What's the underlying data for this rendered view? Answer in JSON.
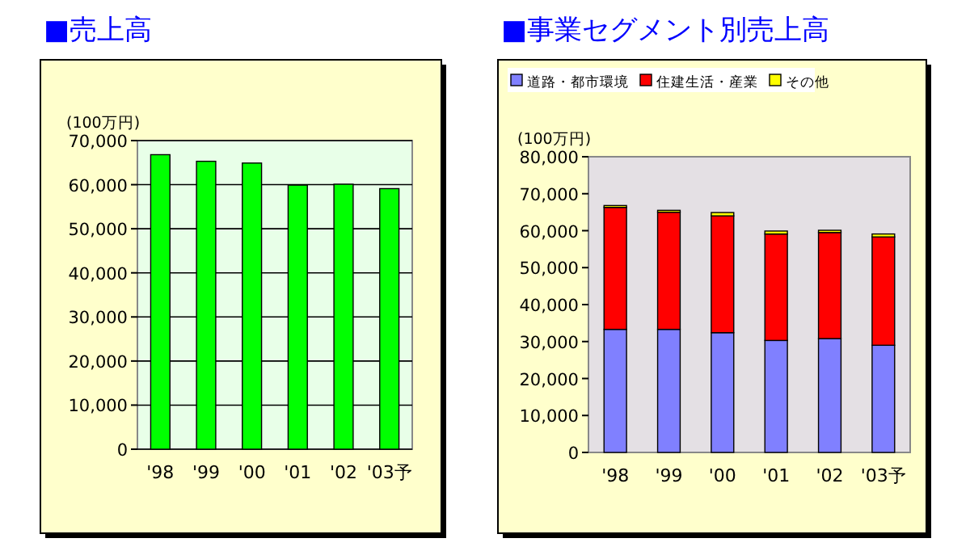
{
  "chart_data": [
    {
      "type": "bar",
      "title": "■売上高",
      "ylabel": "(100万円)",
      "categories": [
        "'98",
        "'99",
        "'00",
        "'01",
        "'02",
        "'03予"
      ],
      "series": [
        {
          "color": "#00ff00",
          "values": [
            66800,
            65300,
            64900,
            59900,
            60100,
            59100
          ]
        }
      ],
      "ylim": [
        0,
        70000
      ],
      "yticks": [
        0,
        {
          "value": 10000,
          "label": "10,000"
        },
        {
          "value": 20000,
          "label": "20,000"
        },
        {
          "value": 30000,
          "label": "30,000"
        },
        {
          "value": 40000,
          "label": "40,000"
        },
        {
          "value": 50000,
          "label": "50,000"
        },
        {
          "value": 60000,
          "label": "60,000"
        },
        {
          "value": 70000,
          "label": "70,000"
        }
      ],
      "grid": "y"
    },
    {
      "type": "bar",
      "title": "■事業セグメント別売上高",
      "ylabel": "(100万円)",
      "categories": [
        "'98",
        "'99",
        "'00",
        "'01",
        "'02",
        "'03予"
      ],
      "stacked": true,
      "legend": "top left",
      "series": [
        {
          "name": "道路・都市環境",
          "color": "#8080ff",
          "values": [
            33300,
            33300,
            32400,
            30300,
            30800,
            29000
          ]
        },
        {
          "name": "住建生活・産業",
          "color": "#ff0000",
          "values": [
            33000,
            31700,
            31600,
            28800,
            28700,
            29300
          ]
        },
        {
          "name": "その他",
          "color": "#ffff00",
          "values": [
            500,
            500,
            900,
            800,
            600,
            800
          ]
        }
      ],
      "ylim": [
        0,
        80000
      ],
      "yticks": [
        0,
        {
          "value": 10000,
          "label": "10,000"
        },
        {
          "value": 20000,
          "label": "20,000"
        },
        {
          "value": 30000,
          "label": "30,000"
        },
        {
          "value": 40000,
          "label": "40,000"
        },
        {
          "value": 50000,
          "label": "50,000"
        },
        {
          "value": 60000,
          "label": "60,000"
        },
        {
          "value": 70000,
          "label": "70,000"
        },
        {
          "value": 80000,
          "label": "80,000"
        }
      ]
    }
  ]
}
